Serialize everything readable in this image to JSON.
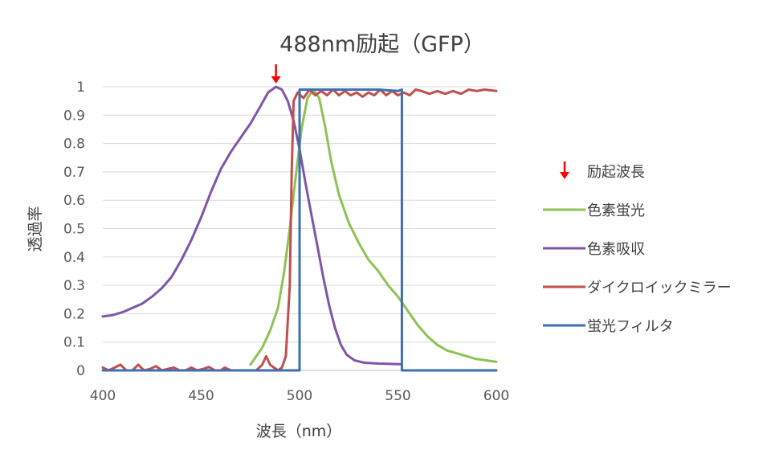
{
  "chart_data": {
    "type": "line",
    "title": "488nm励起（GFP）",
    "xlabel": "波長（nm）",
    "ylabel": "透過率",
    "xlim": [
      400,
      600
    ],
    "ylim": [
      0,
      1
    ],
    "x_ticks": [
      400,
      450,
      500,
      550,
      600
    ],
    "y_ticks": [
      0,
      0.1,
      0.2,
      0.3,
      0.4,
      0.5,
      0.6,
      0.7,
      0.8,
      0.9,
      1
    ],
    "grid": "horizontal",
    "legend_position": "right",
    "excitation": {
      "name": "励起波長",
      "x": 488,
      "color": "#ff0000"
    },
    "series": [
      {
        "name": "色素蛍光",
        "color": "#8fc254",
        "points": [
          [
            475,
            0.02
          ],
          [
            478,
            0.05
          ],
          [
            481,
            0.08
          ],
          [
            485,
            0.14
          ],
          [
            489,
            0.22
          ],
          [
            492,
            0.34
          ],
          [
            495,
            0.5
          ],
          [
            498,
            0.68
          ],
          [
            501,
            0.85
          ],
          [
            504,
            0.96
          ],
          [
            507,
            0.99
          ],
          [
            510,
            0.96
          ],
          [
            513,
            0.86
          ],
          [
            516,
            0.74
          ],
          [
            520,
            0.62
          ],
          [
            525,
            0.52
          ],
          [
            530,
            0.45
          ],
          [
            535,
            0.39
          ],
          [
            540,
            0.35
          ],
          [
            545,
            0.3
          ],
          [
            550,
            0.26
          ],
          [
            555,
            0.21
          ],
          [
            560,
            0.16
          ],
          [
            565,
            0.12
          ],
          [
            570,
            0.09
          ],
          [
            575,
            0.07
          ],
          [
            580,
            0.06
          ],
          [
            585,
            0.05
          ],
          [
            590,
            0.04
          ],
          [
            595,
            0.035
          ],
          [
            600,
            0.03
          ]
        ]
      },
      {
        "name": "色素吸収",
        "color": "#7f55a8",
        "points": [
          [
            400,
            0.19
          ],
          [
            405,
            0.195
          ],
          [
            410,
            0.205
          ],
          [
            415,
            0.22
          ],
          [
            420,
            0.235
          ],
          [
            425,
            0.26
          ],
          [
            430,
            0.29
          ],
          [
            435,
            0.33
          ],
          [
            440,
            0.39
          ],
          [
            445,
            0.46
          ],
          [
            450,
            0.54
          ],
          [
            455,
            0.63
          ],
          [
            460,
            0.71
          ],
          [
            465,
            0.77
          ],
          [
            470,
            0.82
          ],
          [
            475,
            0.87
          ],
          [
            480,
            0.93
          ],
          [
            484,
            0.98
          ],
          [
            488,
            1.0
          ],
          [
            491,
            0.99
          ],
          [
            494,
            0.95
          ],
          [
            497,
            0.88
          ],
          [
            500,
            0.78
          ],
          [
            503,
            0.66
          ],
          [
            506,
            0.55
          ],
          [
            509,
            0.44
          ],
          [
            512,
            0.33
          ],
          [
            515,
            0.23
          ],
          [
            518,
            0.15
          ],
          [
            521,
            0.09
          ],
          [
            524,
            0.055
          ],
          [
            528,
            0.035
          ],
          [
            533,
            0.027
          ],
          [
            540,
            0.024
          ],
          [
            551,
            0.022
          ]
        ]
      },
      {
        "name": "ダイクロイックミラー",
        "color": "#c0504d",
        "points": [
          [
            400,
            0.01
          ],
          [
            403,
            0.0
          ],
          [
            406,
            0.01
          ],
          [
            409,
            0.02
          ],
          [
            412,
            0.0
          ],
          [
            415,
            0.0
          ],
          [
            418,
            0.02
          ],
          [
            421,
            0.0
          ],
          [
            424,
            0.005
          ],
          [
            427,
            0.015
          ],
          [
            430,
            0.0
          ],
          [
            433,
            0.005
          ],
          [
            436,
            0.01
          ],
          [
            439,
            0.0
          ],
          [
            442,
            0.0
          ],
          [
            445,
            0.01
          ],
          [
            448,
            0.0
          ],
          [
            451,
            0.005
          ],
          [
            454,
            0.012
          ],
          [
            457,
            0.0
          ],
          [
            460,
            0.0
          ],
          [
            462,
            0.01
          ],
          [
            465,
            0.0
          ],
          [
            478,
            0.0
          ],
          [
            481,
            0.02
          ],
          [
            483,
            0.05
          ],
          [
            485,
            0.02
          ],
          [
            487,
            0.01
          ],
          [
            489,
            0.0
          ],
          [
            491,
            0.01
          ],
          [
            493,
            0.05
          ],
          [
            495,
            0.3
          ],
          [
            496,
            0.7
          ],
          [
            497,
            0.95
          ],
          [
            499,
            0.98
          ],
          [
            502,
            0.96
          ],
          [
            505,
            0.99
          ],
          [
            508,
            0.97
          ],
          [
            511,
            0.985
          ],
          [
            514,
            0.97
          ],
          [
            517,
            0.99
          ],
          [
            520,
            0.97
          ],
          [
            523,
            0.985
          ],
          [
            526,
            0.97
          ],
          [
            529,
            0.98
          ],
          [
            532,
            0.965
          ],
          [
            535,
            0.98
          ],
          [
            538,
            0.97
          ],
          [
            541,
            0.99
          ],
          [
            544,
            0.97
          ],
          [
            547,
            0.985
          ],
          [
            550,
            0.97
          ],
          [
            553,
            0.98
          ],
          [
            556,
            0.97
          ],
          [
            559,
            0.99
          ],
          [
            562,
            0.985
          ],
          [
            566,
            0.975
          ],
          [
            570,
            0.985
          ],
          [
            574,
            0.975
          ],
          [
            578,
            0.985
          ],
          [
            582,
            0.975
          ],
          [
            586,
            0.99
          ],
          [
            590,
            0.985
          ],
          [
            594,
            0.99
          ],
          [
            600,
            0.985
          ]
        ]
      },
      {
        "name": "蛍光フィルタ",
        "color": "#3f6fb0",
        "points": [
          [
            400,
            0.0
          ],
          [
            500,
            0.0
          ],
          [
            500,
            0.99
          ],
          [
            510,
            0.99
          ],
          [
            520,
            0.99
          ],
          [
            530,
            0.99
          ],
          [
            540,
            0.99
          ],
          [
            550,
            0.985
          ],
          [
            552,
            0.99
          ],
          [
            552,
            0.0
          ],
          [
            600,
            0.0
          ]
        ]
      }
    ]
  }
}
